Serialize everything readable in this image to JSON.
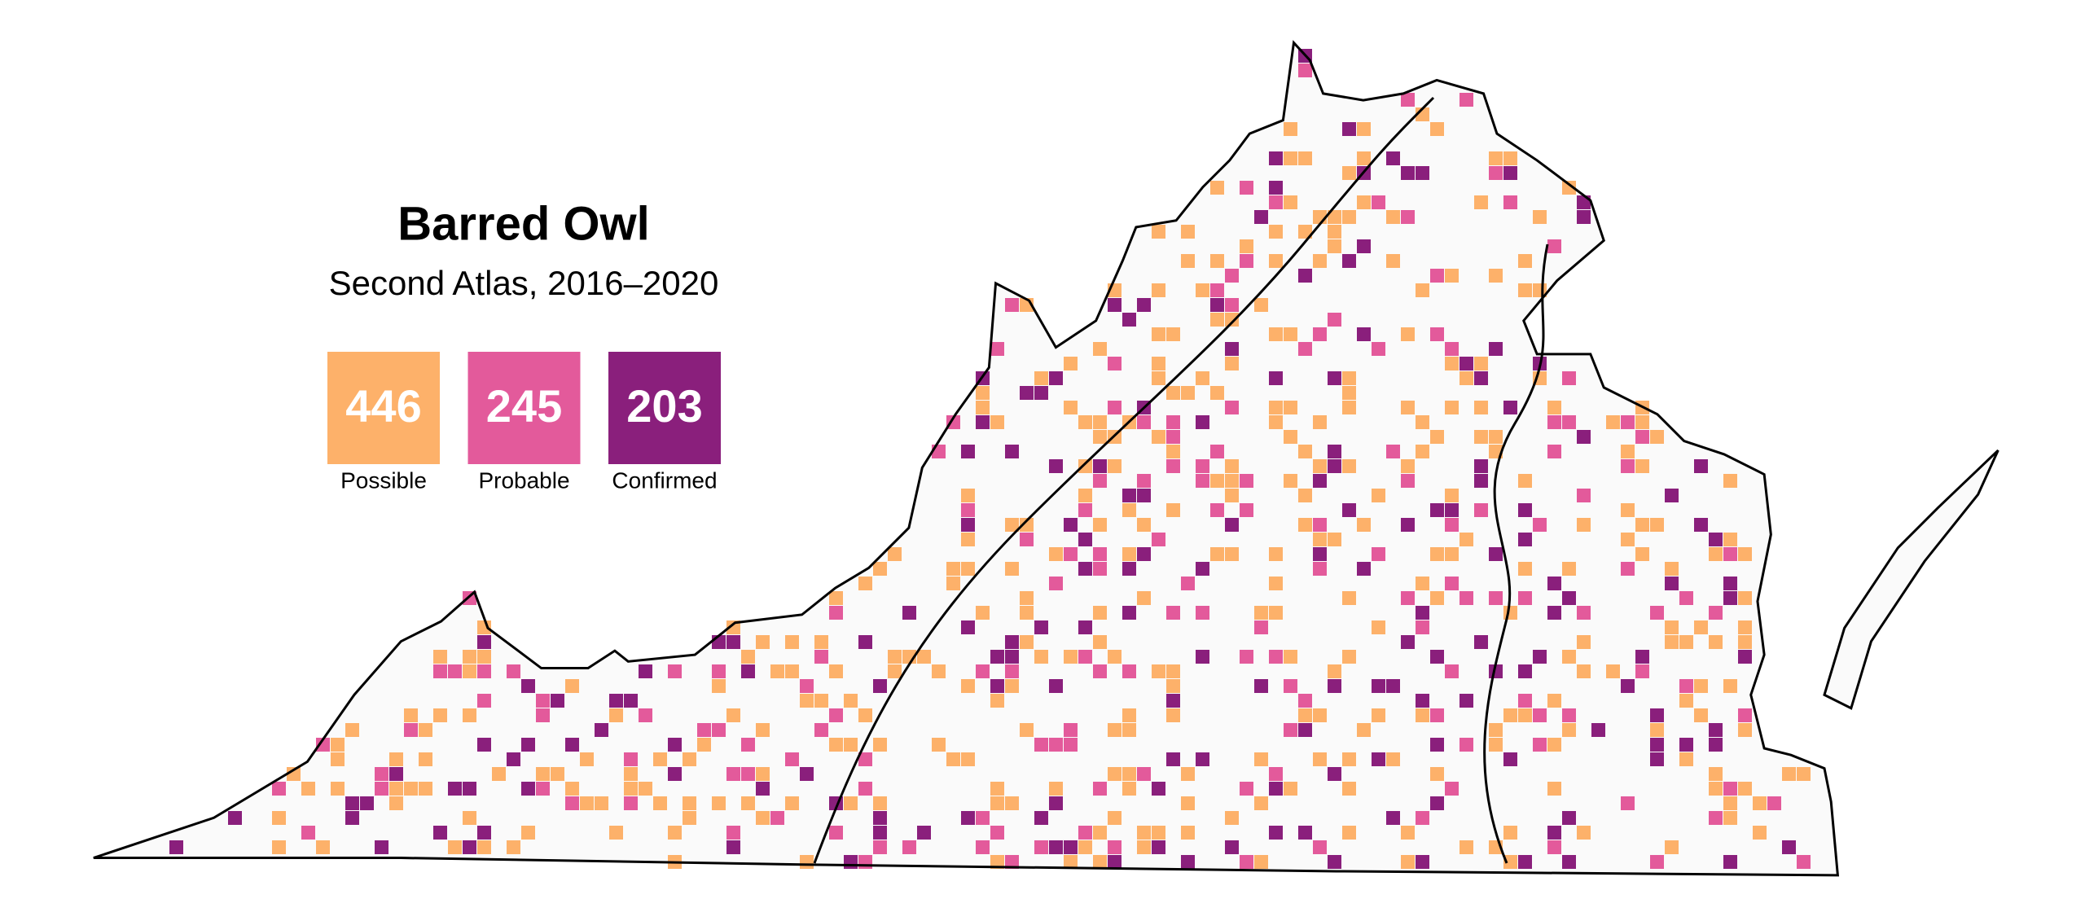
{
  "title": "Barred Owl",
  "subtitle": "Second Atlas, 2016–2020",
  "legend": [
    {
      "count": 446,
      "label": "Possible",
      "color": "#fdb16a"
    },
    {
      "count": 245,
      "label": "Probable",
      "color": "#e35a9b"
    },
    {
      "count": 203,
      "label": "Confirmed",
      "color": "#8a1f7c"
    }
  ]
}
